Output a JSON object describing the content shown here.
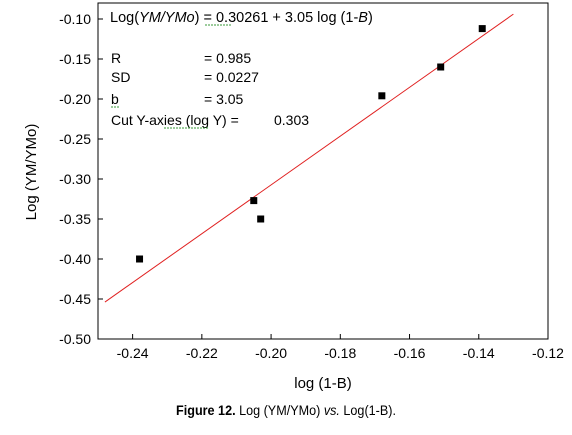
{
  "chart_data": {
    "type": "scatter",
    "xlabel": "log (1-B)",
    "ylabel": "Log (YM/YMo)",
    "xlim": [
      -0.25,
      -0.12
    ],
    "ylim": [
      -0.5,
      -0.08
    ],
    "x_ticks": [
      "-0.24",
      "-0.22",
      "-0.20",
      "-0.18",
      "-0.16",
      "-0.14",
      "-0.12"
    ],
    "y_ticks": [
      "-0.10",
      "-0.15",
      "-0.20",
      "-0.25",
      "-0.30",
      "-0.35",
      "-0.40",
      "-0.45",
      "-0.50"
    ],
    "x_tick_values": [
      -0.24,
      -0.22,
      -0.2,
      -0.18,
      -0.16,
      -0.14,
      -0.12
    ],
    "y_tick_values": [
      -0.1,
      -0.15,
      -0.2,
      -0.25,
      -0.3,
      -0.35,
      -0.4,
      -0.45,
      -0.5
    ],
    "points": [
      {
        "x": -0.238,
        "y": -0.4
      },
      {
        "x": -0.205,
        "y": -0.327
      },
      {
        "x": -0.203,
        "y": -0.35
      },
      {
        "x": -0.168,
        "y": -0.196
      },
      {
        "x": -0.151,
        "y": -0.16
      },
      {
        "x": -0.139,
        "y": -0.112
      }
    ],
    "fit_line": {
      "slope": 3.05,
      "intercept": 0.30261,
      "x_start": -0.248,
      "x_end": -0.13,
      "color": "#e02020"
    },
    "marker_color": "#000000",
    "grid": false,
    "annotations": {
      "equation_prefix": "Log(",
      "equation_var": "YM/YMo",
      "equation_mid": ") = 0.30261 + 3.05 log (1-",
      "equation_b": "B",
      "equation_end": ")",
      "r_label": "R",
      "r_value": "= 0.985",
      "sd_label": "SD",
      "sd_value": "= 0.0227",
      "b_label": "b",
      "b_value": "= 3.05",
      "cut_label": "Cut Y-axies (log Y)  =",
      "cut_value": "0.303"
    }
  },
  "caption": {
    "label": "Figure 12.",
    "text_a": "Log (YM/YMo)",
    "text_vs": "vs.",
    "text_b": "Log(1-B)."
  }
}
